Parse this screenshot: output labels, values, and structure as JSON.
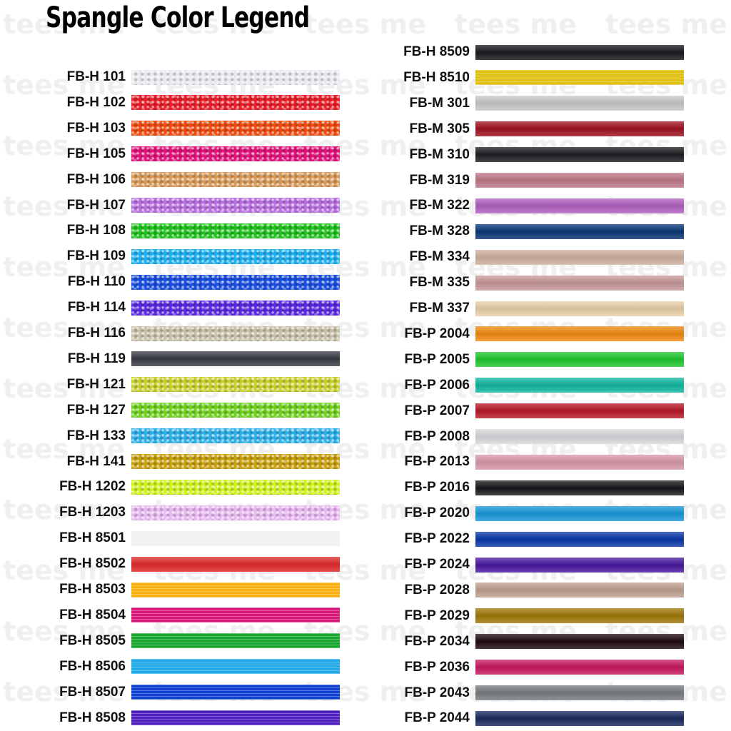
{
  "title": "Spangle Color Legend",
  "watermark": "tees me",
  "left": [
    {
      "label": "FB-H 101",
      "color": "#e8e8ee",
      "finish": "holo"
    },
    {
      "label": "FB-H 102",
      "color": "#e8202a",
      "finish": "holo"
    },
    {
      "label": "FB-H 103",
      "color": "#f04a10",
      "finish": "holo"
    },
    {
      "label": "FB-H 105",
      "color": "#e0147a",
      "finish": "holo"
    },
    {
      "label": "FB-H 106",
      "color": "#d89a5a",
      "finish": "holo"
    },
    {
      "label": "FB-H 107",
      "color": "#b870e0",
      "finish": "holo"
    },
    {
      "label": "FB-H 108",
      "color": "#22c020",
      "finish": "holo"
    },
    {
      "label": "FB-H 109",
      "color": "#20b0f0",
      "finish": "holo"
    },
    {
      "label": "FB-H 110",
      "color": "#1a4ee0",
      "finish": "holo"
    },
    {
      "label": "FB-H 114",
      "color": "#5a2ae0",
      "finish": "holo"
    },
    {
      "label": "FB-H 116",
      "color": "#c8c0a8",
      "finish": "holo"
    },
    {
      "label": "FB-H 119",
      "color": "#383c44",
      "finish": "metal"
    },
    {
      "label": "FB-H 121",
      "color": "#c8d030",
      "finish": "holo"
    },
    {
      "label": "FB-H 127",
      "color": "#70d020",
      "finish": "holo"
    },
    {
      "label": "FB-H 133",
      "color": "#30b0e8",
      "finish": "holo"
    },
    {
      "label": "FB-H 141",
      "color": "#c8a010",
      "finish": "holo"
    },
    {
      "label": "FB-H 1202",
      "color": "#d0f020",
      "finish": "holo"
    },
    {
      "label": "FB-H 1203",
      "color": "#e8b8f0",
      "finish": "holo"
    },
    {
      "label": "FB-H 8501",
      "color": "#f0f0f0",
      "finish": "stripe"
    },
    {
      "label": "FB-H 8502",
      "color": "#e02a2a",
      "finish": "metal"
    },
    {
      "label": "FB-H 8503",
      "color": "#f8b010",
      "finish": "stripe"
    },
    {
      "label": "FB-H 8504",
      "color": "#d81878",
      "finish": "stripe"
    },
    {
      "label": "FB-H 8505",
      "color": "#18a830",
      "finish": "stripe"
    },
    {
      "label": "FB-H 8506",
      "color": "#20a8e8",
      "finish": "stripe"
    },
    {
      "label": "FB-H 8507",
      "color": "#1040d0",
      "finish": "stripe"
    },
    {
      "label": "FB-H 8508",
      "color": "#5020c0",
      "finish": "stripe"
    }
  ],
  "right": [
    {
      "label": "FB-H 8509",
      "color": "#18191e",
      "finish": "metal"
    },
    {
      "label": "FB-H 8510",
      "color": "#e0c010",
      "finish": "stripe"
    },
    {
      "label": "FB-M 301",
      "color": "#c8c8c8",
      "finish": "metal"
    },
    {
      "label": "FB-M 305",
      "color": "#a01020",
      "finish": "metal"
    },
    {
      "label": "FB-M 310",
      "color": "#1e1e22",
      "finish": "metal"
    },
    {
      "label": "FB-M 319",
      "color": "#c07888",
      "finish": "metal"
    },
    {
      "label": "FB-M 322",
      "color": "#b060c0",
      "finish": "metal"
    },
    {
      "label": "FB-M 328",
      "color": "#0a3878",
      "finish": "metal"
    },
    {
      "label": "FB-M 334",
      "color": "#d0b0a0",
      "finish": "metal"
    },
    {
      "label": "FB-M 335",
      "color": "#c89898",
      "finish": "metal"
    },
    {
      "label": "FB-M 337",
      "color": "#e8d0a8",
      "finish": "metal"
    },
    {
      "label": "FB-P 2004",
      "color": "#f08a10",
      "finish": "metal"
    },
    {
      "label": "FB-P 2005",
      "color": "#20c830",
      "finish": "metal"
    },
    {
      "label": "FB-P 2006",
      "color": "#10b8a0",
      "finish": "metal"
    },
    {
      "label": "FB-P 2007",
      "color": "#b81828",
      "finish": "metal"
    },
    {
      "label": "FB-P 2008",
      "color": "#d8d8dc",
      "finish": "metal"
    },
    {
      "label": "FB-P 2013",
      "color": "#d898a8",
      "finish": "metal"
    },
    {
      "label": "FB-P 2016",
      "color": "#18181c",
      "finish": "metal"
    },
    {
      "label": "FB-P 2020",
      "color": "#1898d8",
      "finish": "metal"
    },
    {
      "label": "FB-P 2022",
      "color": "#0838a8",
      "finish": "metal"
    },
    {
      "label": "FB-P 2024",
      "color": "#4818a0",
      "finish": "metal"
    },
    {
      "label": "FB-P 2028",
      "color": "#c0a090",
      "finish": "metal"
    },
    {
      "label": "FB-P 2029",
      "color": "#a07808",
      "finish": "metal"
    },
    {
      "label": "FB-P 2034",
      "color": "#200a10",
      "finish": "metal"
    },
    {
      "label": "FB-P 2036",
      "color": "#c81860",
      "finish": "metal"
    },
    {
      "label": "FB-P 2043",
      "color": "#787c80",
      "finish": "metal"
    },
    {
      "label": "FB-P 2044",
      "color": "#1a2a60",
      "finish": "metal"
    }
  ]
}
